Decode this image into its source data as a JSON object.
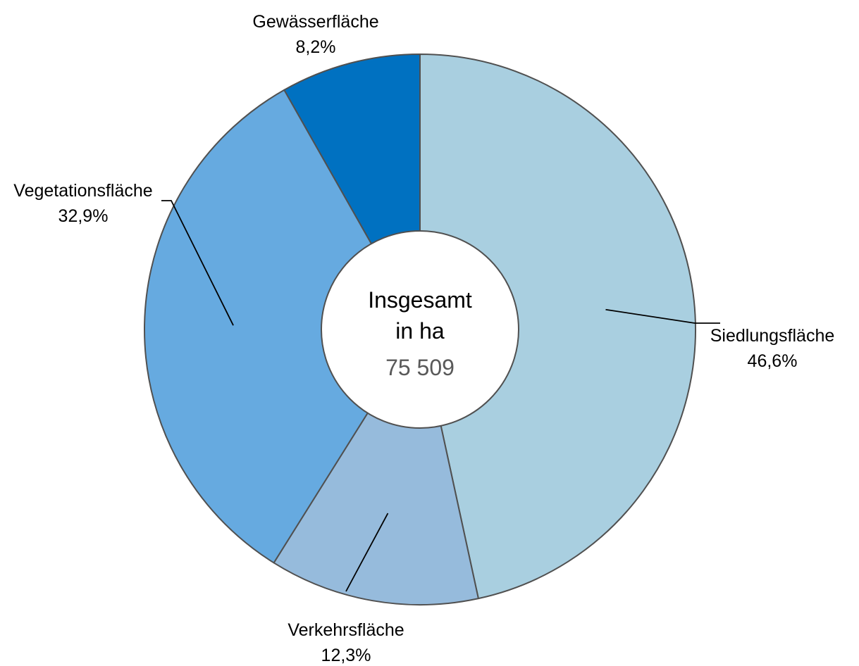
{
  "chart_data": {
    "type": "pie",
    "donut": true,
    "categories": [
      "Siedlungsfläche",
      "Verkehrsfläche",
      "Vegetationsfläche",
      "Gewässerfläche"
    ],
    "values": [
      46.6,
      12.3,
      32.9,
      8.2
    ],
    "value_labels": [
      "46,6%",
      "12,3%",
      "32,9%",
      "8,2%"
    ],
    "colors": [
      "#a9cfe0",
      "#96bbdc",
      "#66aae0",
      "#0071c1"
    ],
    "start_angle_deg": 0,
    "direction": "clockwise",
    "center": {
      "title_line1": "Insgesamt",
      "title_line2": "in ha",
      "value": "75 509"
    },
    "legend": "none"
  }
}
